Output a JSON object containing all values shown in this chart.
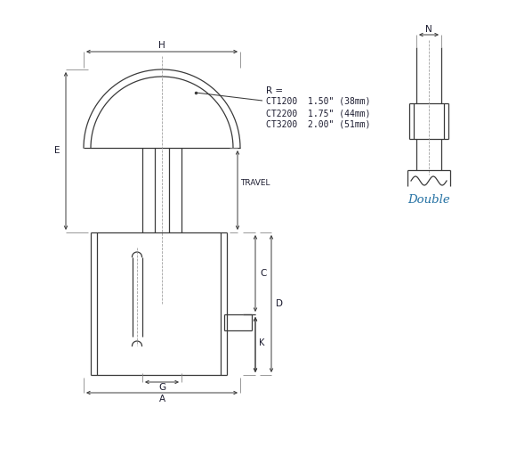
{
  "bg_color": "#ffffff",
  "line_color": "#3a3a3a",
  "dim_color": "#3a3a3a",
  "text_color": "#1a1a2e",
  "double_color": "#2471a3",
  "label_fontsize": 7.5,
  "dim_label_fontsize": 7.5,
  "small_fontsize": 6.5,
  "R_label": "R =",
  "R_lines": [
    "CT1200  1.50\" (38mm)",
    "CT2200  1.75\" (44mm)",
    "CT3200  2.00\" (51mm)"
  ],
  "double_text": "Double"
}
